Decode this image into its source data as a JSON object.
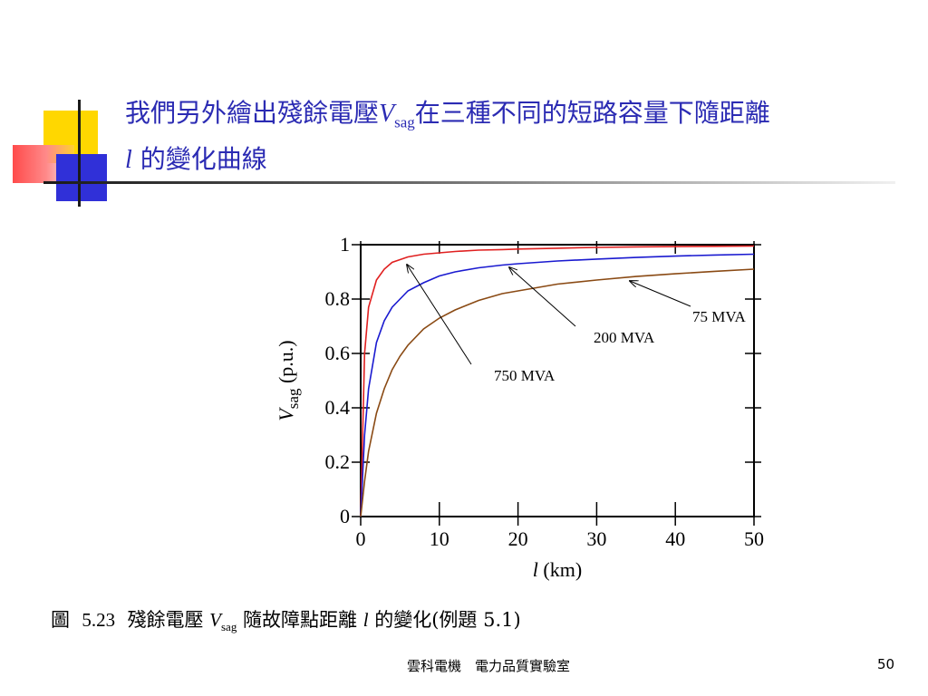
{
  "slide": {
    "title_part1": "我們另外繪出殘餘電壓",
    "title_var": "V",
    "title_sub": "sag",
    "title_part2": "在三種不同的短路容量下隨距離",
    "title_var2": "l",
    "title_part3": "的變化曲線",
    "caption_prefix": "圖",
    "caption_number": "5.23",
    "caption_text1": "殘餘電壓",
    "caption_var": "V",
    "caption_sub": "sag",
    "caption_text2": "隨故障點距離",
    "caption_var2": "l",
    "caption_text3": "的變化(例題 5.1)",
    "footer": "雲科電機　電力品質實驗室",
    "page_number": "50",
    "colors": {
      "title": "#2b2bb3",
      "deco_yellow": "#ffd700",
      "deco_red": "#ff4b4b",
      "deco_blue": "#3030d8"
    }
  },
  "chart_data": {
    "type": "line",
    "xlabel_var": "l",
    "xlabel_unit": "(km)",
    "ylabel_var": "V",
    "ylabel_sub": "sag",
    "ylabel_unit": "(p.u.)",
    "xlim": [
      0,
      50
    ],
    "ylim": [
      0,
      1
    ],
    "xticks": [
      0,
      10,
      20,
      30,
      40,
      50
    ],
    "yticks": [
      0,
      0.2,
      0.4,
      0.6,
      0.8,
      1
    ],
    "ytick_labels": [
      "0",
      "0.2",
      "0.4",
      "0.6",
      "0.8",
      "1"
    ],
    "grid": false,
    "x": [
      0,
      0.5,
      1,
      2,
      3,
      4,
      5,
      6,
      8,
      10,
      12,
      15,
      18,
      20,
      25,
      30,
      35,
      40,
      45,
      50
    ],
    "series": [
      {
        "name": "750 MVA",
        "color": "#e02020",
        "values": [
          0,
          0.6,
          0.77,
          0.87,
          0.91,
          0.935,
          0.945,
          0.955,
          0.965,
          0.97,
          0.975,
          0.98,
          0.982,
          0.984,
          0.987,
          0.99,
          0.992,
          0.993,
          0.994,
          0.995
        ]
      },
      {
        "name": "200 MVA",
        "color": "#1a1ad0",
        "values": [
          0,
          0.3,
          0.47,
          0.64,
          0.72,
          0.77,
          0.8,
          0.83,
          0.86,
          0.885,
          0.9,
          0.915,
          0.925,
          0.93,
          0.94,
          0.947,
          0.953,
          0.958,
          0.962,
          0.965
        ]
      },
      {
        "name": "75 MVA",
        "color": "#8a4a14",
        "values": [
          0,
          0.13,
          0.24,
          0.38,
          0.47,
          0.54,
          0.59,
          0.63,
          0.69,
          0.73,
          0.76,
          0.795,
          0.82,
          0.83,
          0.855,
          0.87,
          0.883,
          0.893,
          0.902,
          0.91
        ]
      }
    ],
    "annotations": [
      {
        "text": "750 MVA",
        "color": "#000000"
      },
      {
        "text": "200 MVA",
        "color": "#000000"
      },
      {
        "text": "75 MVA",
        "color": "#000000"
      }
    ]
  }
}
